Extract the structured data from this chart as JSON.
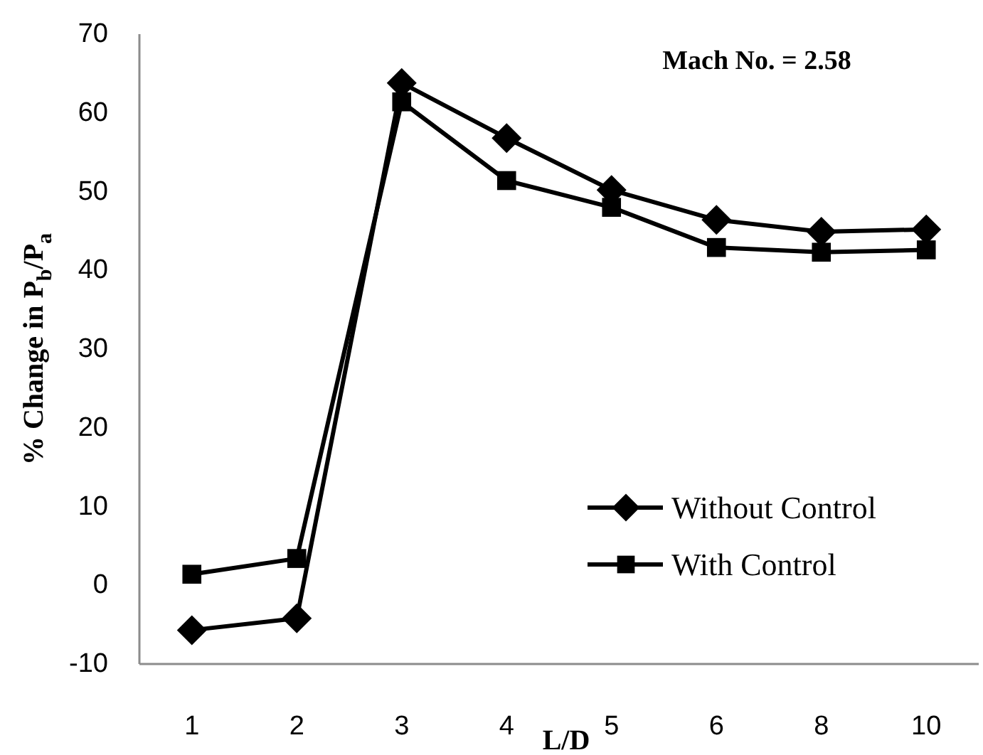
{
  "chart_data": {
    "type": "line",
    "xlabel": "L/D",
    "ylabel": "% Change in P$_{b}$/P$_{a}$",
    "annotations": [
      "Mach No. = 2.58"
    ],
    "categories": [
      "1",
      "2",
      "3",
      "4",
      "5",
      "6",
      "8",
      "10"
    ],
    "series": [
      {
        "name": "Without Control",
        "color": "#000000",
        "marker": "diamond",
        "values": [
          -5.7,
          -4.2,
          63.8,
          56.8,
          50.2,
          46.4,
          44.9,
          45.2
        ]
      },
      {
        "name": "With Control",
        "color": "#000000",
        "marker": "square",
        "values": [
          1.4,
          3.4,
          61.4,
          51.4,
          48.0,
          42.9,
          42.3,
          42.6
        ]
      }
    ],
    "ylim": [
      -10,
      70
    ],
    "yticks": [
      -10,
      0,
      10,
      20,
      30,
      40,
      50,
      60,
      70
    ],
    "grid": false,
    "legend": "bottom right",
    "line_style": "solid"
  }
}
